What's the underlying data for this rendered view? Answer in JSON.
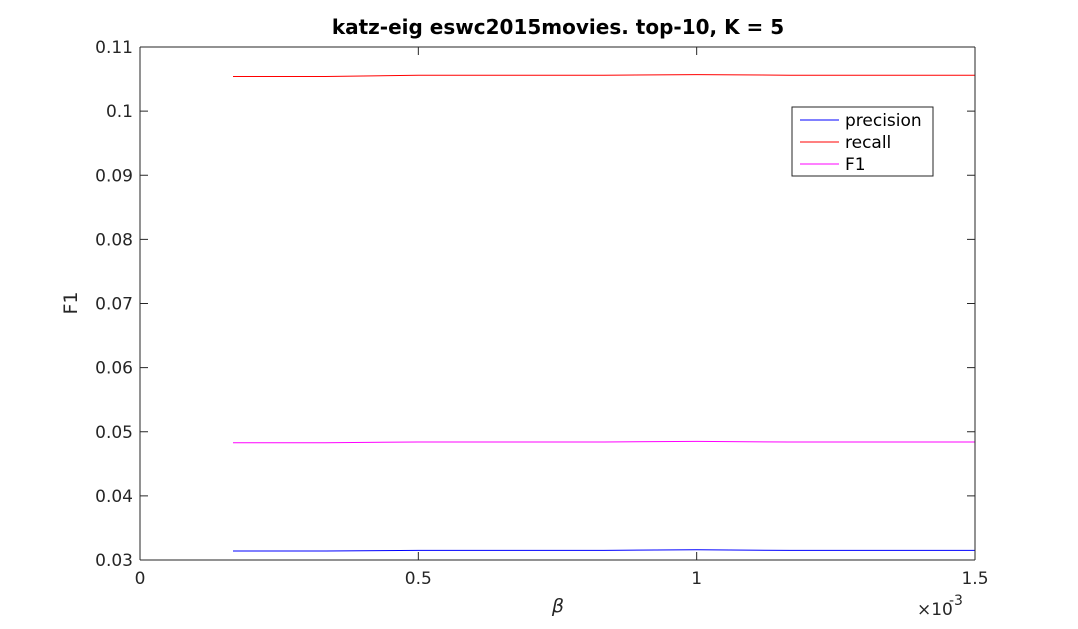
{
  "chart_data": {
    "type": "line",
    "title": "katz-eig eswc2015movies. top-10, K = 5",
    "xlabel": "β",
    "ylabel": "F1",
    "x_exponent_base": "×10",
    "x_exponent_power": "-3",
    "xlim": [
      0,
      1.5
    ],
    "ylim": [
      0.03,
      0.11
    ],
    "x_ticks": [
      0,
      0.5,
      1,
      1.5
    ],
    "x_tick_labels": [
      "0",
      "0.5",
      "1",
      "1.5"
    ],
    "y_ticks": [
      0.03,
      0.04,
      0.05,
      0.06,
      0.07,
      0.08,
      0.09,
      0.1,
      0.11
    ],
    "y_tick_labels": [
      "0.03",
      "0.04",
      "0.05",
      "0.06",
      "0.07",
      "0.08",
      "0.09",
      "0.1",
      "0.11"
    ],
    "grid": false,
    "legend_position": "top-right",
    "x": [
      0.167,
      0.333,
      0.5,
      0.667,
      0.833,
      1.0,
      1.167,
      1.333,
      1.5
    ],
    "series": [
      {
        "name": "precision",
        "color": "#0000ff",
        "values": [
          0.0314,
          0.0314,
          0.0315,
          0.0315,
          0.0315,
          0.0316,
          0.0315,
          0.0315,
          0.0315
        ]
      },
      {
        "name": "recall",
        "color": "#ff0000",
        "values": [
          0.1054,
          0.1054,
          0.1056,
          0.1056,
          0.1056,
          0.1057,
          0.1056,
          0.1056,
          0.1056
        ]
      },
      {
        "name": "F1",
        "color": "#ff00ff",
        "values": [
          0.0483,
          0.0483,
          0.0484,
          0.0484,
          0.0484,
          0.0485,
          0.0484,
          0.0484,
          0.0484
        ]
      }
    ]
  }
}
